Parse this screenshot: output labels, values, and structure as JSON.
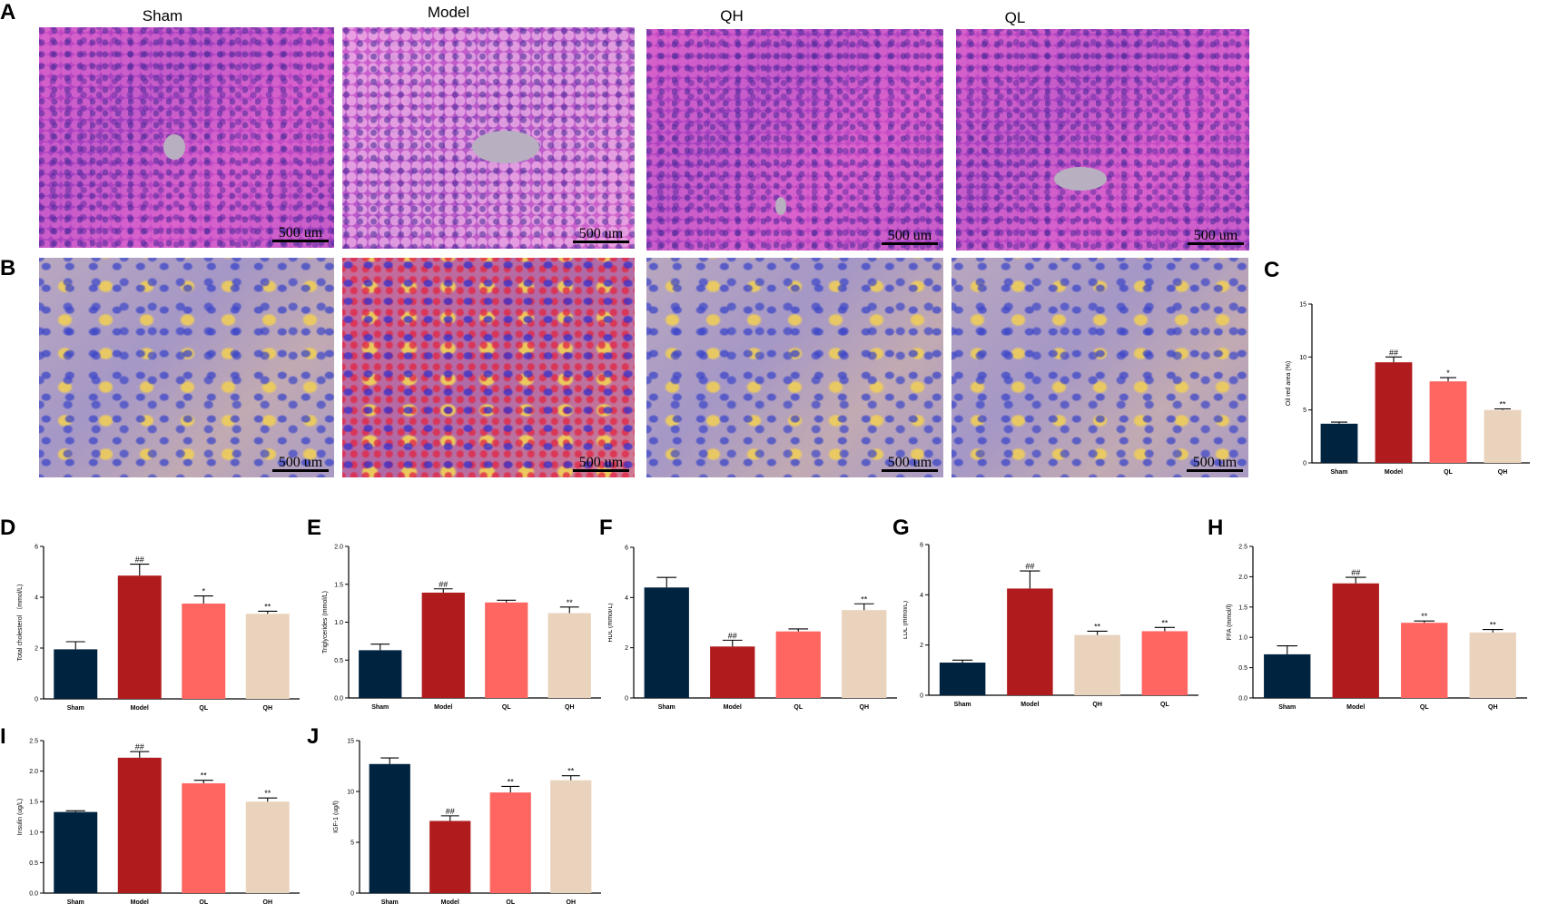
{
  "colors": {
    "sham": "#00233f",
    "model": "#b01c1e",
    "ql": "#ff6661",
    "qh": "#ead3bd"
  },
  "panel_a": {
    "letter": "A",
    "images": [
      {
        "title": "Sham",
        "scale": "500 um",
        "stain": "H&E"
      },
      {
        "title": "Model",
        "scale": "500 um",
        "stain": "H&E"
      },
      {
        "title": "QH",
        "scale": "500 um",
        "stain": "H&E"
      },
      {
        "title": "QL",
        "scale": "500 um",
        "stain": "H&E"
      }
    ]
  },
  "panel_b": {
    "letter": "B",
    "images": [
      {
        "scale": "500 um",
        "stain": "Oil red O"
      },
      {
        "scale": "500 um",
        "stain": "Oil red O"
      },
      {
        "scale": "500 um",
        "stain": "Oil red O"
      },
      {
        "scale": "500 um",
        "stain": "Oil red O"
      }
    ]
  },
  "chart_data": [
    {
      "id": "C",
      "type": "bar",
      "ylabel": "Oil red area (%)",
      "ylim": [
        0,
        15
      ],
      "yticks": [
        0,
        5,
        10,
        15
      ],
      "categories": [
        "Sham",
        "Model",
        "QL",
        "QH"
      ],
      "values": [
        3.7,
        9.5,
        7.7,
        5.0
      ],
      "errors": [
        0.15,
        0.5,
        0.35,
        0.1
      ],
      "sig": [
        "",
        "##",
        "*",
        "**"
      ]
    },
    {
      "id": "D",
      "type": "bar",
      "ylabel": "Total cholesterol （mmol/L)",
      "ylim": [
        0,
        6
      ],
      "yticks": [
        0,
        2,
        4,
        6
      ],
      "categories": [
        "Sham",
        "Model",
        "QL",
        "QH"
      ],
      "values": [
        1.95,
        4.85,
        3.75,
        3.35
      ],
      "errors": [
        0.3,
        0.45,
        0.3,
        0.1
      ],
      "sig": [
        "",
        "##",
        "*",
        "**"
      ]
    },
    {
      "id": "E",
      "type": "bar",
      "ylabel": "Triglycerides (mmol/L)",
      "ylim": [
        0,
        2.0
      ],
      "yticks": [
        0,
        0.5,
        1.0,
        1.5,
        2.0
      ],
      "categories": [
        "Sham",
        "Model",
        "QL",
        "QH"
      ],
      "values": [
        0.63,
        1.39,
        1.26,
        1.12
      ],
      "errors": [
        0.08,
        0.05,
        0.03,
        0.08
      ],
      "sig": [
        "",
        "##",
        "",
        "**"
      ]
    },
    {
      "id": "F",
      "type": "bar",
      "ylabel": "HDL (mmol/L)",
      "ylim": [
        0,
        6
      ],
      "yticks": [
        0,
        2,
        4,
        6
      ],
      "categories": [
        "Sham",
        "Model",
        "QL",
        "QH"
      ],
      "values": [
        4.4,
        2.05,
        2.65,
        3.5
      ],
      "errors": [
        0.4,
        0.25,
        0.1,
        0.25
      ],
      "sig": [
        "",
        "##",
        "",
        "**"
      ]
    },
    {
      "id": "G",
      "type": "bar",
      "ylabel": "LDL (mmol/L)",
      "ylim": [
        0,
        6
      ],
      "yticks": [
        0,
        2,
        4,
        6
      ],
      "categories": [
        "Sham",
        "Model",
        "QH",
        "QL"
      ],
      "values": [
        1.3,
        4.25,
        2.4,
        2.55
      ],
      "errors": [
        0.1,
        0.7,
        0.15,
        0.15
      ],
      "sig": [
        "",
        "##",
        "**",
        "**"
      ]
    },
    {
      "id": "H",
      "type": "bar",
      "ylabel": "FFA (mmol/l)",
      "ylim": [
        0,
        2.5
      ],
      "yticks": [
        0,
        0.5,
        1.0,
        1.5,
        2.0,
        2.5
      ],
      "categories": [
        "Sham",
        "Model",
        "QL",
        "QH"
      ],
      "values": [
        0.72,
        1.89,
        1.24,
        1.08
      ],
      "errors": [
        0.14,
        0.1,
        0.03,
        0.05
      ],
      "sig": [
        "",
        "##",
        "**",
        "**"
      ]
    },
    {
      "id": "I",
      "type": "bar",
      "ylabel": "Insulin (ug/L)",
      "ylim": [
        0,
        2.5
      ],
      "yticks": [
        0,
        0.5,
        1.0,
        1.5,
        2.0,
        2.5
      ],
      "categories": [
        "Sham",
        "Model",
        "QL",
        "QH"
      ],
      "values": [
        1.33,
        2.22,
        1.8,
        1.5
      ],
      "errors": [
        0.02,
        0.1,
        0.05,
        0.06
      ],
      "sig": [
        "",
        "##",
        "**",
        "**"
      ]
    },
    {
      "id": "J",
      "type": "bar",
      "ylabel": "IGF-1 (ug/l)",
      "ylim": [
        0,
        15
      ],
      "yticks": [
        0,
        5,
        10,
        15
      ],
      "categories": [
        "Sham",
        "Model",
        "QL",
        "QH"
      ],
      "values": [
        12.7,
        7.1,
        9.9,
        11.1
      ],
      "errors": [
        0.6,
        0.5,
        0.6,
        0.45
      ],
      "sig": [
        "",
        "##",
        "**",
        "**"
      ]
    }
  ]
}
